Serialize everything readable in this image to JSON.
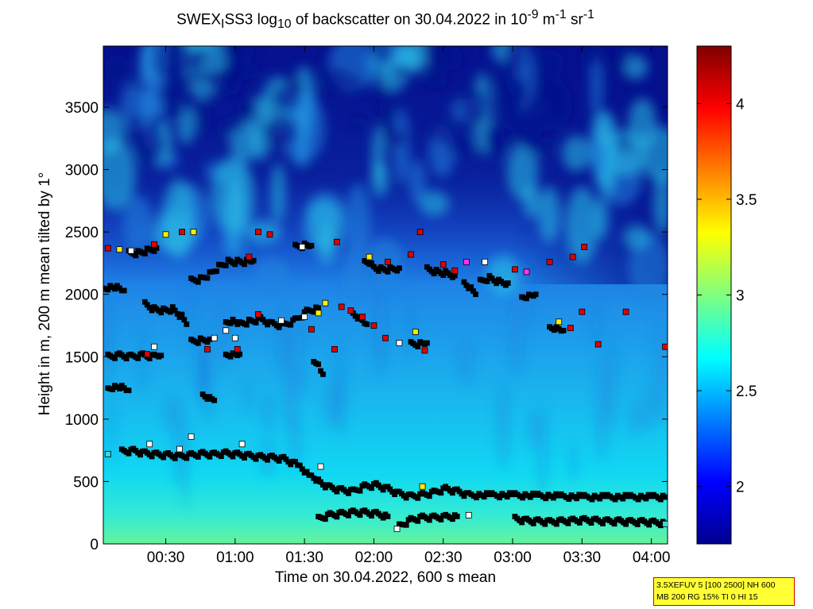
{
  "chart_data": {
    "type": "heatmap",
    "title_parts": {
      "a": "SWEX",
      "a_sub": "I",
      "b": "SS3 log",
      "b_sub": "10",
      "c": " of backscatter on 30.04.2022 in 10",
      "c_sup": "-9",
      "d": " m",
      "d_sup": "-1",
      "e": " sr",
      "e_sup": "-1"
    },
    "xlabel": "Time on 30.04.2022, 600 s mean",
    "ylabel": "Height in m, 200 m mean tilted by 1°",
    "x_range_minutes": [
      3,
      247
    ],
    "y_range_m": [
      0,
      3990
    ],
    "x_ticks": [
      {
        "minute": 30,
        "label": "00:30"
      },
      {
        "minute": 60,
        "label": "01:00"
      },
      {
        "minute": 90,
        "label": "01:30"
      },
      {
        "minute": 120,
        "label": "02:00"
      },
      {
        "minute": 150,
        "label": "02:30"
      },
      {
        "minute": 180,
        "label": "03:00"
      },
      {
        "minute": 210,
        "label": "03:30"
      },
      {
        "minute": 240,
        "label": "04:00"
      }
    ],
    "y_ticks": [
      {
        "value": 0,
        "label": "0"
      },
      {
        "value": 500,
        "label": "500"
      },
      {
        "value": 1000,
        "label": "1000"
      },
      {
        "value": 1500,
        "label": "1500"
      },
      {
        "value": 2000,
        "label": "2000"
      },
      {
        "value": 2500,
        "label": "2500"
      },
      {
        "value": 3000,
        "label": "3000"
      },
      {
        "value": 3500,
        "label": "3500"
      }
    ],
    "colorbar": {
      "range": [
        1.7,
        4.3
      ],
      "ticks": [
        {
          "value": 2,
          "label": "2"
        },
        {
          "value": 2.5,
          "label": "2.5"
        },
        {
          "value": 3,
          "label": "3"
        },
        {
          "value": 3.5,
          "label": "3.5"
        },
        {
          "value": 4,
          "label": "4"
        }
      ],
      "colormap": "jet"
    },
    "marker_tracks": [
      {
        "color": "black",
        "points": [
          [
            11,
            740
          ],
          [
            16,
            745
          ],
          [
            21,
            725
          ],
          [
            26,
            715
          ],
          [
            31,
            710
          ],
          [
            36,
            700
          ],
          [
            41,
            710
          ],
          [
            46,
            720
          ],
          [
            51,
            715
          ],
          [
            56,
            725
          ],
          [
            61,
            715
          ],
          [
            66,
            705
          ],
          [
            71,
            695
          ],
          [
            76,
            690
          ],
          [
            81,
            680
          ],
          [
            86,
            640
          ],
          [
            88,
            610
          ],
          [
            91,
            560
          ],
          [
            93,
            530
          ],
          [
            96,
            500
          ],
          [
            101,
            450
          ],
          [
            106,
            430
          ],
          [
            111,
            420
          ],
          [
            116,
            460
          ],
          [
            121,
            470
          ],
          [
            126,
            440
          ],
          [
            131,
            400
          ],
          [
            136,
            380
          ],
          [
            141,
            390
          ],
          [
            146,
            410
          ],
          [
            151,
            440
          ],
          [
            156,
            420
          ],
          [
            161,
            390
          ],
          [
            171,
            390
          ],
          [
            181,
            390
          ],
          [
            191,
            385
          ],
          [
            201,
            380
          ],
          [
            211,
            375
          ],
          [
            221,
            375
          ],
          [
            231,
            375
          ],
          [
            241,
            375
          ],
          [
            246,
            375
          ]
        ]
      },
      {
        "color": "black",
        "points": [
          [
            96,
            200
          ],
          [
            101,
            230
          ],
          [
            106,
            240
          ],
          [
            111,
            250
          ],
          [
            116,
            250
          ],
          [
            121,
            240
          ],
          [
            126,
            220
          ]
        ]
      },
      {
        "color": "black",
        "points": [
          [
            131,
            140
          ],
          [
            136,
            190
          ],
          [
            141,
            210
          ],
          [
            146,
            210
          ],
          [
            151,
            215
          ],
          [
            156,
            220
          ]
        ]
      },
      {
        "color": "black",
        "points": [
          [
            181,
            200
          ],
          [
            186,
            185
          ],
          [
            191,
            180
          ],
          [
            196,
            175
          ],
          [
            201,
            180
          ],
          [
            206,
            185
          ],
          [
            211,
            190
          ],
          [
            216,
            185
          ],
          [
            221,
            180
          ],
          [
            226,
            180
          ],
          [
            231,
            175
          ],
          [
            236,
            175
          ],
          [
            241,
            170
          ],
          [
            246,
            165
          ]
        ]
      },
      {
        "color": "black",
        "points": [
          [
            5,
            1230
          ],
          [
            8,
            1250
          ],
          [
            11,
            1250
          ],
          [
            14,
            1230
          ]
        ]
      },
      {
        "color": "black",
        "points": [
          [
            5,
            1500
          ],
          [
            10,
            1510
          ],
          [
            15,
            1500
          ],
          [
            20,
            1510
          ],
          [
            25,
            1500
          ],
          [
            28,
            1510
          ]
        ]
      },
      {
        "color": "black",
        "points": [
          [
            3,
            2030
          ],
          [
            6,
            2050
          ],
          [
            9,
            2050
          ],
          [
            12,
            2030
          ]
        ]
      },
      {
        "color": "black",
        "points": [
          [
            14,
            2330
          ],
          [
            18,
            2330
          ],
          [
            22,
            2350
          ],
          [
            26,
            2370
          ]
        ]
      },
      {
        "color": "black",
        "points": [
          [
            21,
            1920
          ],
          [
            25,
            1880
          ],
          [
            29,
            1870
          ],
          [
            33,
            1880
          ],
          [
            37,
            1820
          ],
          [
            39,
            1760
          ]
        ]
      },
      {
        "color": "black",
        "points": [
          [
            41,
            2110
          ],
          [
            45,
            2120
          ],
          [
            49,
            2160
          ],
          [
            53,
            2220
          ],
          [
            57,
            2260
          ],
          [
            61,
            2260
          ],
          [
            65,
            2260
          ],
          [
            68,
            2270
          ]
        ]
      },
      {
        "color": "black",
        "points": [
          [
            41,
            1620
          ],
          [
            45,
            1630
          ],
          [
            49,
            1640
          ]
        ]
      },
      {
        "color": "black",
        "points": [
          [
            56,
            1500
          ],
          [
            59,
            1510
          ],
          [
            62,
            1520
          ]
        ]
      },
      {
        "color": "black",
        "points": [
          [
            46,
            1180
          ],
          [
            49,
            1160
          ],
          [
            51,
            1150
          ]
        ]
      },
      {
        "color": "black",
        "points": [
          [
            56,
            1760
          ],
          [
            59,
            1780
          ],
          [
            62,
            1760
          ],
          [
            66,
            1780
          ],
          [
            71,
            1800
          ],
          [
            76,
            1760
          ],
          [
            81,
            1750
          ],
          [
            86,
            1790
          ],
          [
            91,
            1860
          ],
          [
            96,
            1890
          ]
        ]
      },
      {
        "color": "black",
        "points": [
          [
            116,
            2250
          ],
          [
            119,
            2250
          ]
        ]
      },
      {
        "color": "black",
        "points": [
          [
            119,
            2220
          ],
          [
            123,
            2200
          ],
          [
            127,
            2200
          ],
          [
            131,
            2210
          ]
        ]
      },
      {
        "color": "black",
        "points": [
          [
            143,
            2200
          ],
          [
            147,
            2180
          ],
          [
            151,
            2170
          ],
          [
            155,
            2150
          ]
        ]
      },
      {
        "color": "black",
        "points": [
          [
            159,
            2080
          ],
          [
            162,
            2040
          ],
          [
            164,
            2000
          ]
        ]
      },
      {
        "color": "black",
        "points": [
          [
            166,
            2100
          ],
          [
            170,
            2130
          ],
          [
            174,
            2100
          ],
          [
            178,
            2090
          ]
        ]
      },
      {
        "color": "black",
        "points": [
          [
            184,
            1960
          ],
          [
            187,
            1980
          ],
          [
            190,
            2000
          ]
        ]
      },
      {
        "color": "black",
        "points": [
          [
            196,
            1720
          ],
          [
            199,
            1720
          ],
          [
            202,
            1710
          ]
        ]
      },
      {
        "color": "black",
        "points": [
          [
            136,
            1600
          ],
          [
            140,
            1600
          ],
          [
            143,
            1610
          ]
        ]
      },
      {
        "color": "black",
        "points": [
          [
            111,
            1830
          ],
          [
            114,
            1800
          ],
          [
            117,
            1760
          ]
        ]
      },
      {
        "color": "black",
        "points": [
          [
            86,
            2380
          ],
          [
            90,
            2390
          ],
          [
            93,
            2390
          ]
        ]
      },
      {
        "color": "black",
        "points": [
          [
            98,
            1340
          ],
          [
            96,
            1420
          ],
          [
            94,
            1460
          ]
        ]
      }
    ],
    "scatter_points": [
      [
        5,
        2370,
        "red"
      ],
      [
        10,
        2360,
        "yellow"
      ],
      [
        15,
        2350,
        "white"
      ],
      [
        25,
        2400,
        "red"
      ],
      [
        30,
        2480,
        "yellow"
      ],
      [
        37,
        2500,
        "red"
      ],
      [
        42,
        2500,
        "yellow"
      ],
      [
        66,
        2300,
        "red"
      ],
      [
        70,
        2500,
        "red"
      ],
      [
        75,
        2480,
        "red"
      ],
      [
        89,
        2380,
        "white"
      ],
      [
        104,
        2420,
        "red"
      ],
      [
        118,
        2300,
        "yellow"
      ],
      [
        126,
        2260,
        "red"
      ],
      [
        136,
        2320,
        "red"
      ],
      [
        140,
        2500,
        "red"
      ],
      [
        150,
        2240,
        "red"
      ],
      [
        155,
        2190,
        "red"
      ],
      [
        160,
        2260,
        "magenta"
      ],
      [
        168,
        2260,
        "white"
      ],
      [
        181,
        2200,
        "red"
      ],
      [
        186,
        2180,
        "magenta"
      ],
      [
        196,
        2260,
        "red"
      ],
      [
        206,
        2300,
        "red"
      ],
      [
        211,
        2380,
        "red"
      ],
      [
        106,
        1900,
        "red"
      ],
      [
        110,
        1870,
        "red"
      ],
      [
        115,
        1820,
        "red"
      ],
      [
        120,
        1750,
        "red"
      ],
      [
        125,
        1650,
        "red"
      ],
      [
        131,
        1610,
        "white"
      ],
      [
        138,
        1700,
        "yellow"
      ],
      [
        142,
        1550,
        "red"
      ],
      [
        90,
        1820,
        "white"
      ],
      [
        93,
        1720,
        "red"
      ],
      [
        96,
        1850,
        "yellow"
      ],
      [
        80,
        1790,
        "white"
      ],
      [
        70,
        1840,
        "red"
      ],
      [
        60,
        1650,
        "white"
      ],
      [
        56,
        1710,
        "white"
      ],
      [
        48,
        1560,
        "red"
      ],
      [
        51,
        1650,
        "white"
      ],
      [
        61,
        1560,
        "red"
      ],
      [
        25,
        1580,
        "white"
      ],
      [
        22,
        1520,
        "red"
      ],
      [
        99,
        1930,
        "yellow"
      ],
      [
        103,
        1560,
        "red"
      ],
      [
        200,
        1780,
        "yellow"
      ],
      [
        205,
        1730,
        "red"
      ],
      [
        210,
        1860,
        "red"
      ],
      [
        217,
        1600,
        "red"
      ],
      [
        229,
        1860,
        "red"
      ],
      [
        246,
        1580,
        "red"
      ],
      [
        5,
        720,
        "cyan"
      ],
      [
        23,
        800,
        "white"
      ],
      [
        36,
        760,
        "white"
      ],
      [
        41,
        860,
        "white"
      ],
      [
        63,
        800,
        "white"
      ],
      [
        97,
        620,
        "white"
      ],
      [
        130,
        120,
        "white"
      ],
      [
        141,
        460,
        "yellow"
      ],
      [
        161,
        230,
        "white"
      ],
      [
        246,
        160,
        "cyan"
      ]
    ]
  },
  "info_box": {
    "line1": "3.5XEFUV 5 [100 2500] NH 600",
    "line2": "MB 200 RG 15% TI 0 HI 15"
  }
}
